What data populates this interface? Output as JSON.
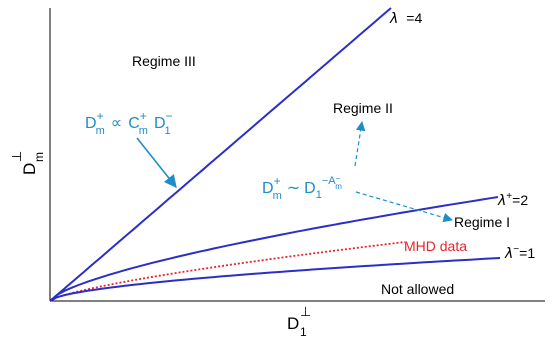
{
  "chart_data": {
    "type": "line",
    "axes": {
      "xlabel_main": "D",
      "xlabel_sub": "1",
      "xlabel_sup": "⊥",
      "ylabel_main": "D",
      "ylabel_sub": "m",
      "ylabel_sup": "⊥",
      "ticks": "none"
    },
    "series": [
      {
        "id": "lam4",
        "label_sym": "λ",
        "label_rest": "=4",
        "exponent": 1.0,
        "end_x": 1.0,
        "end_y": 1.0,
        "color": "#2a2fc8",
        "style": "solid"
      },
      {
        "id": "lam2",
        "label_sym": "λ",
        "label_sup": "+",
        "label_rest": "=2",
        "exponent": 0.68,
        "end_x": 1.0,
        "end_y": 1.0,
        "color": "#2a2fc8",
        "style": "solid"
      },
      {
        "id": "mhd",
        "label": "MHD data",
        "exponent": 0.72,
        "end_x": 1.0,
        "end_y": 1.0,
        "color": "#e8242c",
        "style": "dotted"
      },
      {
        "id": "lam1",
        "label_sym": "λ",
        "label_sup": "−",
        "label_rest": "=1",
        "exponent": 0.58,
        "end_x": 1.0,
        "end_y": 1.0,
        "color": "#2a2fc8",
        "style": "solid"
      }
    ],
    "regions": {
      "regime3": "Regime III",
      "regime2": "Regime II",
      "regime1": "Regime I",
      "not_allowed": "Not allowed"
    },
    "annotations": {
      "eq1": {
        "D": "D",
        "plus": "+",
        "m": "m",
        "rel": "∝",
        "C": "C",
        "D2": "D",
        "minus": "−",
        "one": "1"
      },
      "eq2": {
        "D": "D",
        "plus": "+",
        "m": "m",
        "rel": "~",
        "D2": "D",
        "one": "1",
        "minus": "−",
        "A": "A",
        "Am_sub": "m",
        "Am_sup": "−"
      }
    },
    "colors": {
      "axis": "#000000",
      "line": "#2a2fc8",
      "annotation": "#1f8dc8",
      "mhd": "#e8242c"
    }
  }
}
